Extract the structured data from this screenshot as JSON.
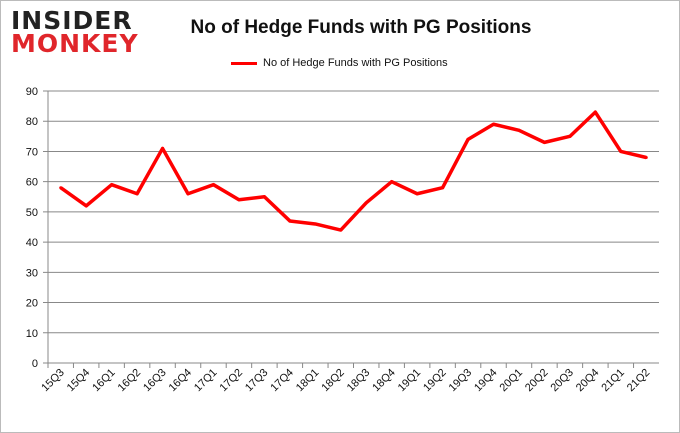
{
  "logo": {
    "line1": "INSIDER",
    "line2": "MONKEY"
  },
  "chart_data": {
    "type": "line",
    "title": "No of Hedge Funds with PG Positions",
    "xlabel": "",
    "ylabel": "",
    "ylim": [
      0,
      90
    ],
    "yticks": [
      0,
      10,
      20,
      30,
      40,
      50,
      60,
      70,
      80,
      90
    ],
    "grid": true,
    "legend_position": "top-center",
    "categories": [
      "15Q3",
      "15Q4",
      "16Q1",
      "16Q2",
      "16Q3",
      "16Q4",
      "17Q1",
      "17Q2",
      "17Q3",
      "17Q4",
      "18Q1",
      "18Q2",
      "18Q3",
      "18Q4",
      "19Q1",
      "19Q2",
      "19Q3",
      "19Q4",
      "20Q1",
      "20Q2",
      "20Q3",
      "20Q4",
      "21Q1",
      "21Q2"
    ],
    "series": [
      {
        "name": "No of Hedge Funds with PG Positions",
        "color": "#ff0000",
        "values": [
          58,
          52,
          59,
          56,
          71,
          56,
          59,
          54,
          55,
          47,
          46,
          44,
          53,
          60,
          56,
          58,
          74,
          79,
          77,
          73,
          75,
          83,
          70,
          68
        ]
      }
    ]
  }
}
